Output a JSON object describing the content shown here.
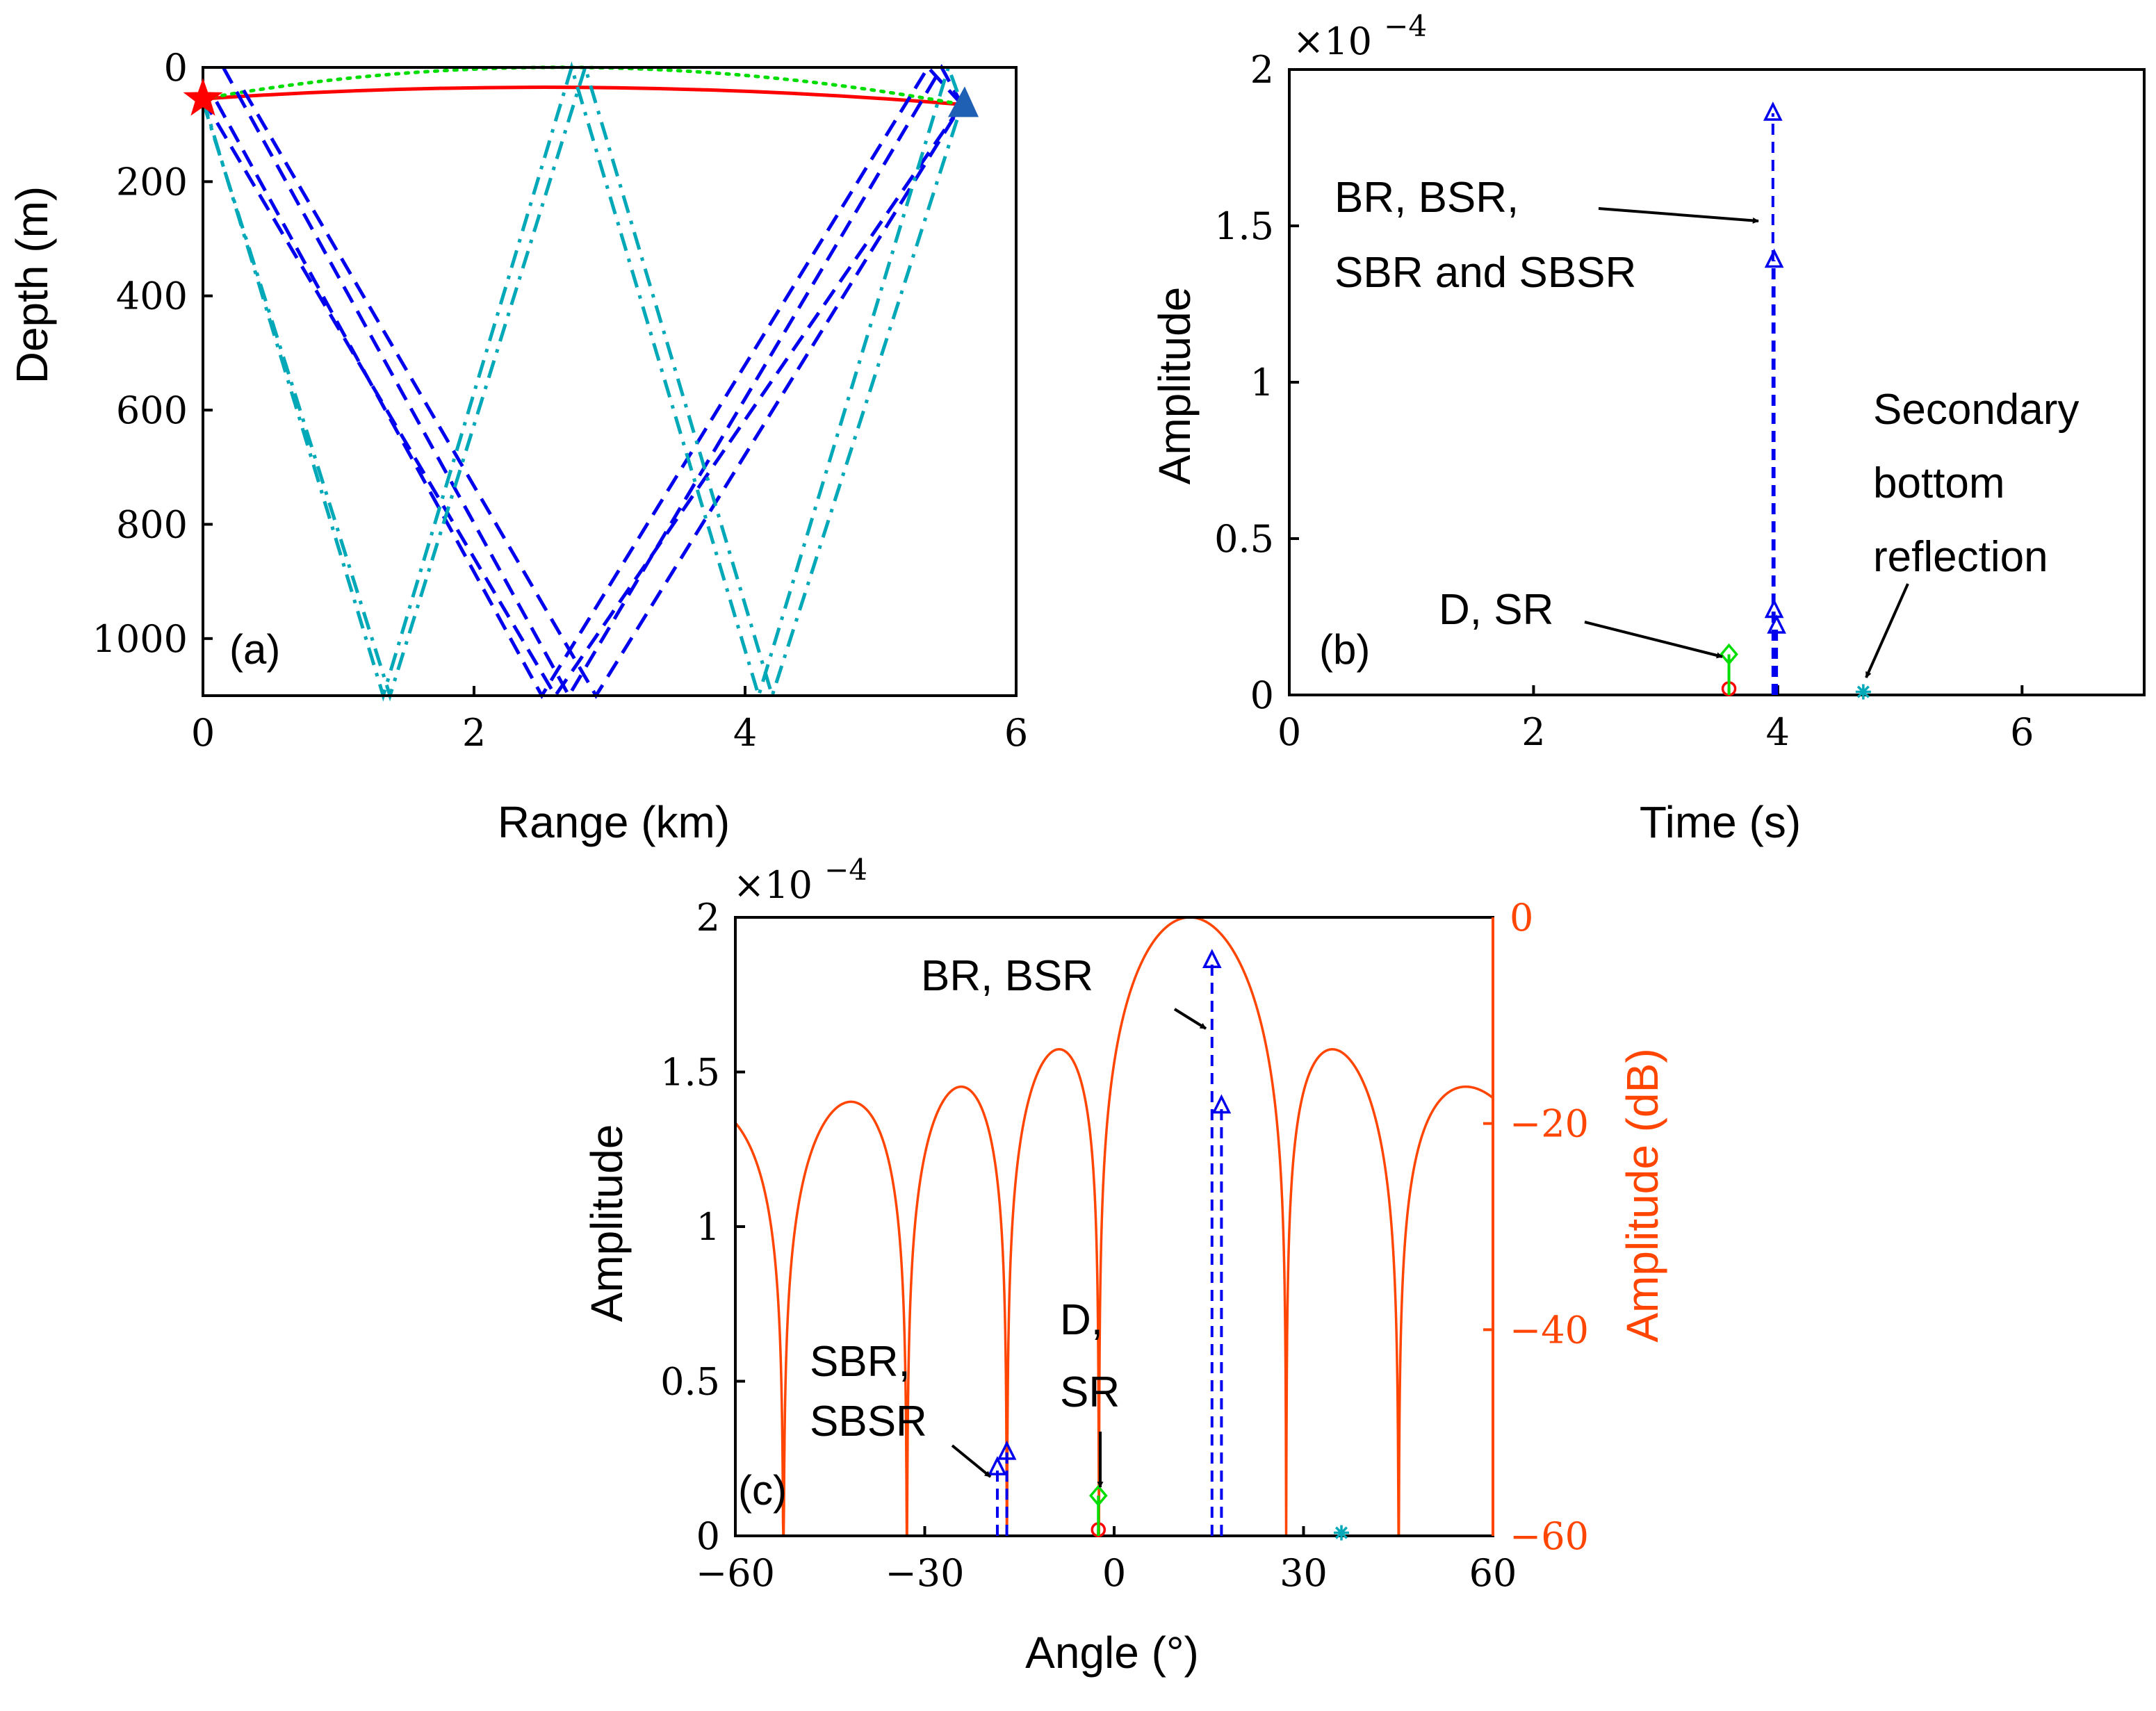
{
  "colors": {
    "direct": "#ff0000",
    "surface": "#00dd00",
    "bottom": "#0000ee",
    "sbottom": "#00a8b8",
    "beam": "#ff4500",
    "source": "#ff0000",
    "receiver": "#1f5fb4"
  },
  "chart_data": [
    {
      "id": "a",
      "type": "line",
      "panel_label": "(a)",
      "xlabel": "Range (km)",
      "ylabel": "Depth (m)",
      "xlim": [
        0,
        6
      ],
      "ylim": [
        1100,
        0
      ],
      "xticks": [
        0,
        2,
        4,
        6
      ],
      "yticks": [
        0,
        200,
        400,
        600,
        800,
        1000
      ],
      "source": {
        "range": 0.0,
        "depth": 55
      },
      "receiver": {
        "range": 5.6,
        "depth": 65
      },
      "series": [
        {
          "name": "D",
          "color_key": "direct",
          "style": "solid",
          "rays": [
            [
              [
                0,
                55
              ],
              [
                2.8,
                35
              ],
              [
                5.6,
                65
              ]
            ]
          ]
        },
        {
          "name": "SR",
          "color_key": "surface",
          "style": "dotted",
          "rays": [
            [
              [
                0,
                55
              ],
              [
                2.75,
                0
              ],
              [
                5.6,
                65
              ]
            ]
          ]
        },
        {
          "name": "BR/BSR/SBR/SBSR",
          "color_key": "bottom",
          "style": "dashed",
          "rays": [
            [
              [
                0.15,
                0
              ],
              [
                2.7,
                1100
              ],
              [
                5.45,
                0
              ],
              [
                5.6,
                65
              ]
            ],
            [
              [
                0,
                55
              ],
              [
                2.6,
                1100
              ],
              [
                5.6,
                65
              ]
            ],
            [
              [
                0.3,
                40
              ],
              [
                2.9,
                1100
              ],
              [
                5.6,
                65
              ]
            ],
            [
              [
                0.1,
                60
              ],
              [
                2.5,
                1100
              ],
              [
                5.35,
                0
              ],
              [
                5.6,
                65
              ]
            ]
          ]
        },
        {
          "name": "Secondary bottom",
          "color_key": "sbottom",
          "style": "dashdot",
          "rays": [
            [
              [
                0,
                55
              ],
              [
                1.33,
                1100
              ],
              [
                2.72,
                0
              ],
              [
                4.1,
                1100
              ],
              [
                5.5,
                0
              ],
              [
                5.6,
                65
              ]
            ],
            [
              [
                0,
                60
              ],
              [
                1.38,
                1100
              ],
              [
                2.82,
                0
              ],
              [
                4.2,
                1100
              ],
              [
                5.6,
                65
              ]
            ]
          ]
        }
      ]
    },
    {
      "id": "b",
      "type": "stem",
      "panel_label": "(b)",
      "xlabel": "Time (s)",
      "ylabel": "Amplitude",
      "multiplier": "×10",
      "multiplier_exp": "−4",
      "xlim": [
        0,
        7
      ],
      "ylim": [
        0,
        2
      ],
      "xticks": [
        0,
        2,
        4,
        6
      ],
      "yticks": [
        0,
        0.5,
        1,
        1.5,
        2
      ],
      "series": [
        {
          "name": "D",
          "color_key": "direct",
          "marker": "circle",
          "x": [
            3.6
          ],
          "y": [
            0.02
          ]
        },
        {
          "name": "SR",
          "color_key": "surface",
          "marker": "diamond",
          "x": [
            3.6
          ],
          "y": [
            0.13
          ]
        },
        {
          "name": "BR, BSR",
          "color_key": "bottom",
          "marker": "triangle",
          "x": [
            3.96,
            3.97
          ],
          "y": [
            1.86,
            1.39
          ]
        },
        {
          "name": "SBR, SBSR",
          "color_key": "bottom",
          "marker": "triangle",
          "x": [
            3.97,
            3.99
          ],
          "y": [
            0.27,
            0.22
          ]
        },
        {
          "name": "Secondary bottom",
          "color_key": "sbottom",
          "marker": "asterisk",
          "x": [
            4.7
          ],
          "y": [
            0.01
          ]
        }
      ],
      "annotations": [
        {
          "lines": [
            "BR, BSR,",
            "SBR and SBSR"
          ]
        },
        {
          "lines": [
            "Secondary",
            "bottom",
            "reflection"
          ]
        },
        {
          "lines": [
            "D, SR"
          ]
        }
      ]
    },
    {
      "id": "c",
      "type": "stem+line",
      "panel_label": "(c)",
      "xlabel": "Angle (°)",
      "ylabel": "Amplitude",
      "ylabel_right": "Amplitude (dB)",
      "multiplier": "×10",
      "multiplier_exp": "−4",
      "xlim": [
        -60,
        60
      ],
      "ylim": [
        0,
        2
      ],
      "ylim_right": [
        -60,
        0
      ],
      "xticks": [
        -60,
        -30,
        0,
        30,
        60
      ],
      "yticks": [
        0,
        0.5,
        1,
        1.5,
        2
      ],
      "yticks_right": [
        0,
        -20,
        -40,
        -60
      ],
      "beam_pattern": {
        "steer_deg": 12,
        "elements": 8,
        "floor_db": -60
      },
      "series": [
        {
          "name": "D",
          "color_key": "direct",
          "marker": "circle",
          "x": [
            -2.5
          ],
          "y": [
            0.02
          ]
        },
        {
          "name": "SR",
          "color_key": "surface",
          "marker": "diamond",
          "x": [
            -2.5
          ],
          "y": [
            0.13
          ]
        },
        {
          "name": "BR, BSR",
          "color_key": "bottom",
          "marker": "triangle",
          "x": [
            15.5,
            17.0
          ],
          "y": [
            1.86,
            1.39
          ]
        },
        {
          "name": "SBR, SBSR",
          "color_key": "bottom",
          "marker": "triangle",
          "x": [
            -17.0,
            -18.5
          ],
          "y": [
            0.27,
            0.22
          ]
        },
        {
          "name": "Secondary bottom",
          "color_key": "sbottom",
          "marker": "asterisk",
          "x": [
            36
          ],
          "y": [
            0.01
          ]
        }
      ],
      "annotations": [
        {
          "lines": [
            "BR, BSR"
          ]
        },
        {
          "lines": [
            "D,",
            "SR"
          ]
        },
        {
          "lines": [
            "SBR,",
            "SBSR"
          ]
        }
      ]
    }
  ]
}
